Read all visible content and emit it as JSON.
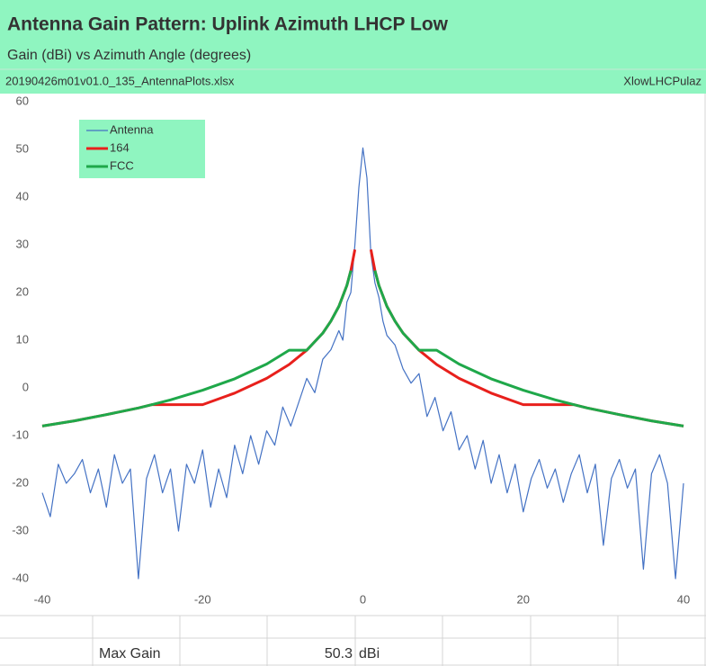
{
  "header": {
    "title": "Antenna Gain Pattern: Uplink Azimuth LHCP Low",
    "subtitle": "Gain (dBi) vs Azimuth Angle (degrees)",
    "file": "20190426m01v01.0_135_AntennaPlots.xlsx",
    "sheet": "XlowLHCPulaz"
  },
  "chart_data": {
    "type": "line",
    "xlim": [
      -40,
      40
    ],
    "ylim": [
      -40,
      60
    ],
    "xticks": [
      -40,
      -20,
      0,
      20,
      40
    ],
    "yticks": [
      60,
      50,
      40,
      30,
      20,
      10,
      0,
      -10,
      -20,
      -30,
      -40
    ],
    "legend": "upper left",
    "grid": false,
    "series": [
      {
        "name": "Antenna",
        "color": "#4472c4",
        "x": [
          -40,
          -39,
          -38,
          -37,
          -36,
          -35,
          -34,
          -33,
          -32,
          -31,
          -30,
          -29,
          -28,
          -27,
          -26,
          -25,
          -24,
          -23,
          -22,
          -21,
          -20,
          -19,
          -18,
          -17,
          -16,
          -15,
          -14,
          -13,
          -12,
          -11,
          -10,
          -9,
          -8,
          -7,
          -6,
          -5,
          -4,
          -3,
          -2.5,
          -2,
          -1.5,
          -1,
          -0.5,
          0,
          0.5,
          1,
          1.5,
          2,
          2.5,
          3,
          4,
          5,
          6,
          7,
          8,
          9,
          10,
          11,
          12,
          13,
          14,
          15,
          16,
          17,
          18,
          19,
          20,
          21,
          22,
          23,
          24,
          25,
          26,
          27,
          28,
          29,
          30,
          31,
          32,
          33,
          34,
          35,
          36,
          37,
          38,
          39,
          40
        ],
        "values": [
          -22,
          -27,
          -16,
          -20,
          -18,
          -15,
          -22,
          -17,
          -25,
          -14,
          -20,
          -17,
          -40,
          -19,
          -14,
          -22,
          -17,
          -30,
          -16,
          -20,
          -13,
          -25,
          -17,
          -23,
          -12,
          -18,
          -10,
          -16,
          -9,
          -12,
          -4,
          -8,
          -3,
          2,
          -1,
          6,
          8,
          12,
          10,
          18,
          20,
          30,
          42,
          50.3,
          44,
          28,
          22,
          19,
          14,
          11,
          9,
          4,
          1,
          3,
          -6,
          -2,
          -9,
          -5,
          -13,
          -10,
          -17,
          -11,
          -20,
          -14,
          -22,
          -16,
          -26,
          -19,
          -15,
          -21,
          -17,
          -24,
          -18,
          -14,
          -22,
          -16,
          -33,
          -19,
          -15,
          -21,
          -17,
          -38,
          -18,
          -14,
          -20,
          -40,
          -20
        ]
      },
      {
        "name": "164",
        "color": "#e8201c",
        "x": [
          -40,
          -36,
          -32,
          -28,
          -26.3,
          -24,
          -20,
          -16,
          -12,
          -9.2,
          -7,
          -5,
          -4,
          -3,
          -2,
          -1.5,
          -1,
          0,
          1,
          1.5,
          2,
          3,
          4,
          5,
          7,
          9.2,
          12,
          16,
          20,
          24,
          26.3,
          28,
          32,
          36,
          40
        ],
        "values": [
          -8,
          -6.9,
          -5.6,
          -4.2,
          -3.5,
          -3.5,
          -3.5,
          -1.1,
          2,
          4.9,
          7.9,
          11.5,
          14,
          17.1,
          21.5,
          24.6,
          29,
          null,
          29,
          24.6,
          21.5,
          17.1,
          14,
          11.5,
          7.9,
          4.9,
          2,
          -1.1,
          -3.5,
          -3.5,
          -3.5,
          -4.2,
          -5.6,
          -6.9,
          -8
        ]
      },
      {
        "name": "FCC",
        "color": "#1fa84a",
        "x": [
          -40,
          -36,
          -32,
          -28,
          -26.3,
          -24,
          -20,
          -16,
          -12,
          -9.2,
          -7,
          -5,
          -4,
          -3,
          -2,
          -1.5,
          -1,
          0,
          1,
          1.5,
          2,
          3,
          4,
          5,
          7,
          9.2,
          12,
          16,
          20,
          24,
          26.3,
          28,
          32,
          36,
          40
        ],
        "values": [
          -8,
          -6.9,
          -5.6,
          -4.2,
          -3.5,
          -2.5,
          -0.5,
          1.9,
          5,
          7.9,
          7.9,
          11.5,
          14,
          17.1,
          21.5,
          24.6,
          null,
          null,
          null,
          24.6,
          21.5,
          17.1,
          14,
          11.5,
          7.9,
          7.9,
          5,
          1.9,
          -0.5,
          -2.5,
          -3.5,
          -4.2,
          -5.6,
          -6.9,
          -8
        ]
      }
    ]
  },
  "summary": {
    "label": "Max Gain",
    "value": 50.3,
    "unit": "dBi"
  }
}
